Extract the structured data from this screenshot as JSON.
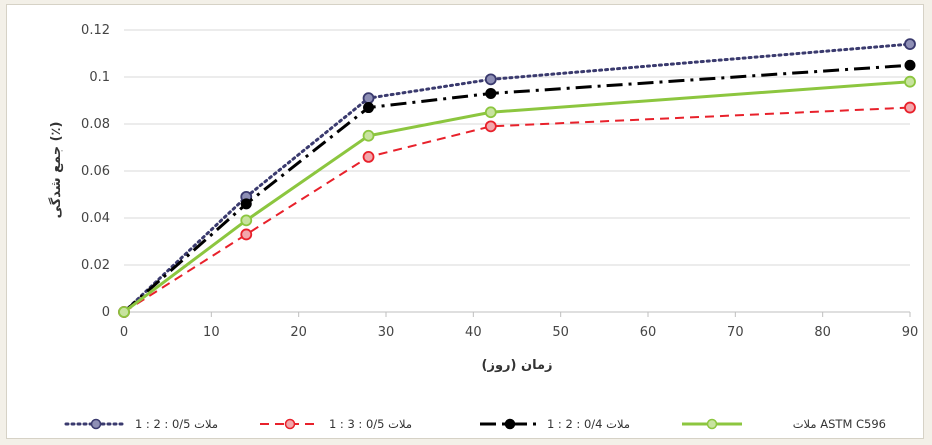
{
  "chart_data": {
    "type": "line",
    "xlabel": "زمان (روز)",
    "ylabel": "جمع شدگی (٪)",
    "xlim": [
      0,
      90
    ],
    "ylim": [
      0,
      0.12
    ],
    "x_ticks": [
      "0",
      "10",
      "20",
      "30",
      "40",
      "50",
      "60",
      "70",
      "80",
      "90"
    ],
    "y_ticks": [
      "0",
      "0.02",
      "0.04",
      "0.06",
      "0.08",
      "0.1",
      "0.12"
    ],
    "grid": "horizontal",
    "legend_position": "bottom",
    "series": [
      {
        "name": "ملات 0/5 : 2 : 1",
        "color": "#3a3a6e",
        "marker_fill": "#8e8fb5",
        "line_style": "dotted",
        "x": [
          0,
          14,
          28,
          42,
          90
        ],
        "values": [
          0,
          0.049,
          0.091,
          0.099,
          0.114
        ]
      },
      {
        "name": "ملات 0/5 : 3 : 1",
        "color": "#e8212b",
        "marker_fill": "#f2a7ac",
        "line_style": "dashed",
        "x": [
          0,
          14,
          28,
          42,
          90
        ],
        "values": [
          0,
          0.033,
          0.066,
          0.079,
          0.087
        ]
      },
      {
        "name": "ملات 0/4 : 2 : 1",
        "color": "#000000",
        "marker_fill": "#000000",
        "line_style": "dashdot",
        "x": [
          0,
          14,
          28,
          42,
          90
        ],
        "values": [
          0,
          0.046,
          0.087,
          0.093,
          0.105
        ]
      },
      {
        "name": "ملات ASTM C596",
        "color": "#8cc63f",
        "marker_fill": "#c8e39f",
        "line_style": "solid",
        "x": [
          0,
          14,
          28,
          42,
          90
        ],
        "values": [
          0,
          0.039,
          0.075,
          0.085,
          0.098
        ]
      }
    ]
  }
}
